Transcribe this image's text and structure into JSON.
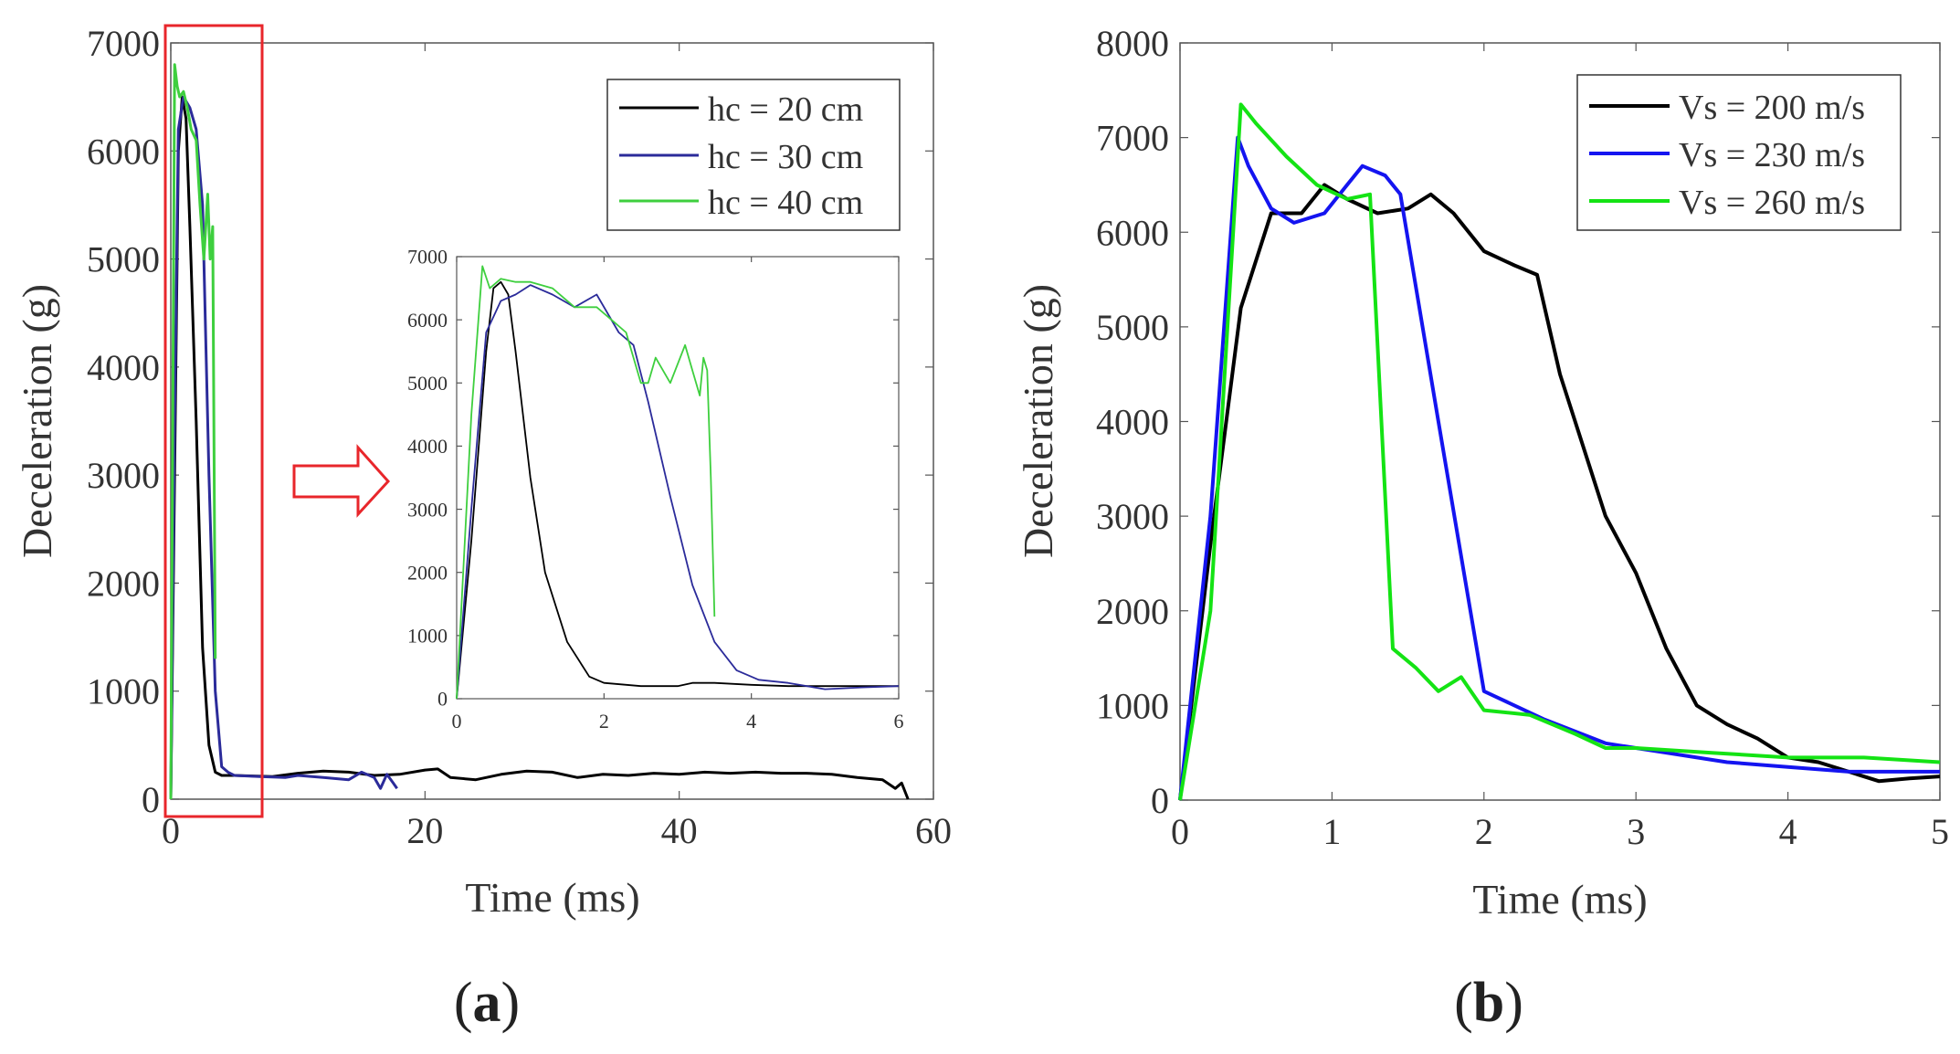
{
  "chart_data": [
    {
      "panel": "(a)",
      "panel_prefix": "(",
      "panel_letter": "a",
      "panel_suffix": ")",
      "type": "line",
      "title": "",
      "xlabel": "Time (ms)",
      "ylabel": "Deceleration (g)",
      "xlim": [
        0,
        60
      ],
      "ylim": [
        0,
        7000
      ],
      "xticks": [
        0,
        20,
        40,
        60
      ],
      "yticks": [
        0,
        1000,
        2000,
        3000,
        4000,
        5000,
        6000,
        7000
      ],
      "grid": false,
      "legend_position": "top-right",
      "highlight_box": {
        "x": [
          0,
          6.5
        ],
        "y": [
          0,
          7000
        ],
        "color": "#e8262b"
      },
      "arrow_color": "#e8262b",
      "series": [
        {
          "name": "hc = 20 cm",
          "color": "#000000",
          "x": [
            0,
            0.3,
            0.6,
            0.9,
            1.2,
            1.5,
            2.0,
            2.5,
            3.0,
            3.5,
            4.0,
            5,
            8,
            10,
            12,
            14,
            16,
            18,
            20,
            21,
            22,
            24,
            26,
            28,
            30,
            32,
            34,
            36,
            38,
            40,
            42,
            44,
            46,
            48,
            50,
            52,
            54,
            56,
            57,
            57.5,
            58
          ],
          "y": [
            0,
            3000,
            6000,
            6500,
            6300,
            5300,
            3500,
            1400,
            500,
            250,
            220,
            220,
            210,
            240,
            260,
            250,
            220,
            230,
            270,
            280,
            200,
            180,
            230,
            260,
            250,
            200,
            230,
            220,
            240,
            230,
            250,
            240,
            250,
            240,
            240,
            230,
            200,
            180,
            100,
            150,
            0
          ]
        },
        {
          "name": "hc = 30 cm",
          "color": "#2b2b9a",
          "x": [
            0,
            0.3,
            0.6,
            1.0,
            1.5,
            2.0,
            2.5,
            3.0,
            3.5,
            4.0,
            4.5,
            5,
            7,
            9,
            10,
            12,
            14,
            15,
            16,
            16.5,
            17,
            17.5,
            17.8
          ],
          "y": [
            0,
            3500,
            6200,
            6500,
            6400,
            6200,
            5500,
            3000,
            1000,
            300,
            250,
            220,
            210,
            200,
            220,
            200,
            180,
            250,
            200,
            100,
            230,
            150,
            100
          ]
        },
        {
          "name": "hc = 40 cm",
          "color": "#3ecf3e",
          "x": [
            0,
            0.3,
            0.5,
            0.7,
            1.0,
            1.3,
            1.6,
            2.0,
            2.3,
            2.6,
            2.9,
            3.1,
            3.3,
            3.5
          ],
          "y": [
            0,
            6800,
            6600,
            6500,
            6550,
            6400,
            6200,
            6100,
            5500,
            5000,
            5600,
            5000,
            5300,
            1300
          ]
        }
      ],
      "inset": {
        "xlim": [
          0,
          6
        ],
        "ylim": [
          0,
          7000
        ],
        "xticks": [
          0,
          2,
          4,
          6
        ],
        "yticks": [
          0,
          1000,
          2000,
          3000,
          4000,
          5000,
          6000,
          7000
        ],
        "series": [
          {
            "name": "hc = 20 cm",
            "color": "#000000",
            "x": [
              0,
              0.2,
              0.4,
              0.5,
              0.6,
              0.7,
              0.8,
              1.0,
              1.2,
              1.5,
              1.8,
              2.0,
              2.5,
              3.0,
              3.2,
              3.5,
              4.0,
              4.5,
              5.0,
              5.5,
              6.0
            ],
            "y": [
              0,
              2500,
              5500,
              6500,
              6600,
              6400,
              5500,
              3500,
              2000,
              900,
              350,
              250,
              200,
              200,
              250,
              250,
              220,
              200,
              200,
              200,
              200
            ]
          },
          {
            "name": "hc = 30 cm",
            "color": "#2b2b9a",
            "x": [
              0,
              0.2,
              0.4,
              0.6,
              0.8,
              1.0,
              1.3,
              1.6,
              1.9,
              2.2,
              2.4,
              2.6,
              2.9,
              3.2,
              3.5,
              3.8,
              4.1,
              4.5,
              5.0,
              5.5,
              6.0
            ],
            "y": [
              0,
              3000,
              5800,
              6300,
              6400,
              6550,
              6400,
              6200,
              6400,
              5800,
              5600,
              4700,
              3200,
              1800,
              900,
              450,
              300,
              250,
              150,
              180,
              200
            ]
          },
          {
            "name": "hc = 40 cm",
            "color": "#3ecf3e",
            "x": [
              0,
              0.2,
              0.35,
              0.45,
              0.6,
              0.8,
              1.0,
              1.3,
              1.6,
              1.9,
              2.1,
              2.3,
              2.5,
              2.6,
              2.7,
              2.9,
              3.1,
              3.2,
              3.3,
              3.35,
              3.4,
              3.45,
              3.5
            ],
            "y": [
              0,
              4500,
              6850,
              6500,
              6650,
              6600,
              6600,
              6500,
              6200,
              6200,
              6000,
              5800,
              5000,
              5000,
              5400,
              5000,
              5600,
              5200,
              4800,
              5400,
              5200,
              3500,
              1300
            ]
          }
        ]
      }
    },
    {
      "panel": "(b)",
      "panel_prefix": "(",
      "panel_letter": "b",
      "panel_suffix": ")",
      "type": "line",
      "title": "",
      "xlabel": "Time (ms)",
      "ylabel": "Deceleration (g)",
      "xlim": [
        0,
        5
      ],
      "ylim": [
        0,
        8000
      ],
      "xticks": [
        0,
        1,
        2,
        3,
        4,
        5
      ],
      "yticks": [
        0,
        1000,
        2000,
        3000,
        4000,
        5000,
        6000,
        7000,
        8000
      ],
      "grid": false,
      "legend_position": "top-right",
      "series": [
        {
          "name": "Vs = 200 m/s",
          "color": "#000000",
          "x": [
            0,
            0.2,
            0.4,
            0.6,
            0.8,
            0.95,
            1.1,
            1.3,
            1.5,
            1.65,
            1.8,
            2.0,
            2.2,
            2.35,
            2.5,
            2.8,
            3.0,
            3.2,
            3.4,
            3.6,
            3.8,
            4.0,
            4.2,
            4.4,
            4.6,
            4.8,
            5.0
          ],
          "y": [
            0,
            2700,
            5200,
            6200,
            6200,
            6500,
            6350,
            6200,
            6250,
            6400,
            6200,
            5800,
            5650,
            5550,
            4500,
            3000,
            2400,
            1600,
            1000,
            800,
            650,
            450,
            400,
            300,
            200,
            230,
            250
          ]
        },
        {
          "name": "Vs = 230 m/s",
          "color": "#1414f0",
          "x": [
            0,
            0.2,
            0.38,
            0.45,
            0.6,
            0.75,
            0.95,
            1.1,
            1.2,
            1.35,
            1.45,
            1.7,
            2.0,
            2.4,
            2.8,
            3.2,
            3.6,
            4.0,
            4.4,
            4.8,
            5.0
          ],
          "y": [
            0,
            3000,
            7000,
            6700,
            6250,
            6100,
            6200,
            6500,
            6700,
            6600,
            6400,
            4000,
            1150,
            850,
            600,
            500,
            400,
            350,
            300,
            300,
            300
          ]
        },
        {
          "name": "Vs = 260 m/s",
          "color": "#14e314",
          "x": [
            0,
            0.2,
            0.4,
            0.5,
            0.7,
            0.9,
            1.1,
            1.25,
            1.4,
            1.55,
            1.7,
            1.85,
            2.0,
            2.3,
            2.6,
            2.8,
            3.0,
            3.5,
            4.0,
            4.5,
            5.0
          ],
          "y": [
            0,
            2000,
            7350,
            7150,
            6800,
            6500,
            6350,
            6400,
            1600,
            1400,
            1150,
            1300,
            950,
            900,
            700,
            550,
            550,
            500,
            450,
            450,
            400
          ]
        }
      ]
    }
  ]
}
